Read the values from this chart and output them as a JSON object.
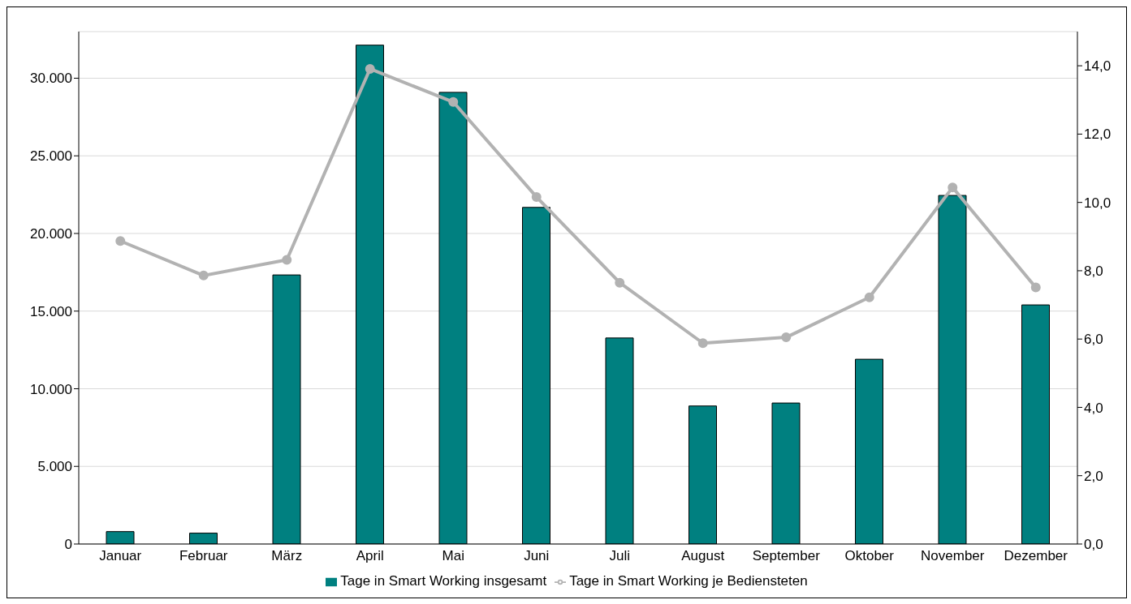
{
  "chart_data": {
    "type": "bar",
    "categories": [
      "Januar",
      "Februar",
      "März",
      "April",
      "Mai",
      "Juni",
      "Juli",
      "August",
      "September",
      "Oktober",
      "November",
      "Dezember"
    ],
    "series": [
      {
        "name": "Tage in Smart Working insgesamt",
        "color": "#008080",
        "values": [
          800,
          700,
          17330,
          32130,
          29090,
          21680,
          13270,
          8890,
          9080,
          11900,
          22450,
          15400
        ]
      },
      {
        "name": "Tage in Smart Working je Bediensteten",
        "type": "line",
        "axis": "y2",
        "color": "#b2b2b2",
        "values": [
          8.87,
          7.86,
          8.32,
          13.91,
          12.94,
          10.16,
          7.65,
          5.88,
          6.05,
          7.22,
          10.44,
          7.51
        ]
      }
    ],
    "ylim": [
      0,
      33000
    ],
    "yticks": [
      0,
      {
        "value": 5000,
        "label": "5.000"
      },
      {
        "value": 10000,
        "label": "10.000"
      },
      {
        "value": 15000,
        "label": "15.000"
      },
      {
        "value": 20000,
        "label": "20.000"
      },
      {
        "value": 25000,
        "label": "25.000"
      },
      {
        "value": 30000,
        "label": "30.000"
      }
    ],
    "y2lim": [
      0,
      15
    ],
    "y2ticks": [
      {
        "value": 0,
        "label": "0,0"
      },
      {
        "value": 2,
        "label": "2,0"
      },
      {
        "value": 4,
        "label": "4,0"
      },
      {
        "value": 6,
        "label": "6,0"
      },
      {
        "value": 8,
        "label": "8,0"
      },
      {
        "value": 10,
        "label": "10,0"
      },
      {
        "value": 12,
        "label": "12,0"
      },
      {
        "value": 14,
        "label": "14,0"
      }
    ],
    "grid": "y",
    "legend": "bottom",
    "marker": "circle",
    "line_style": "solid"
  }
}
